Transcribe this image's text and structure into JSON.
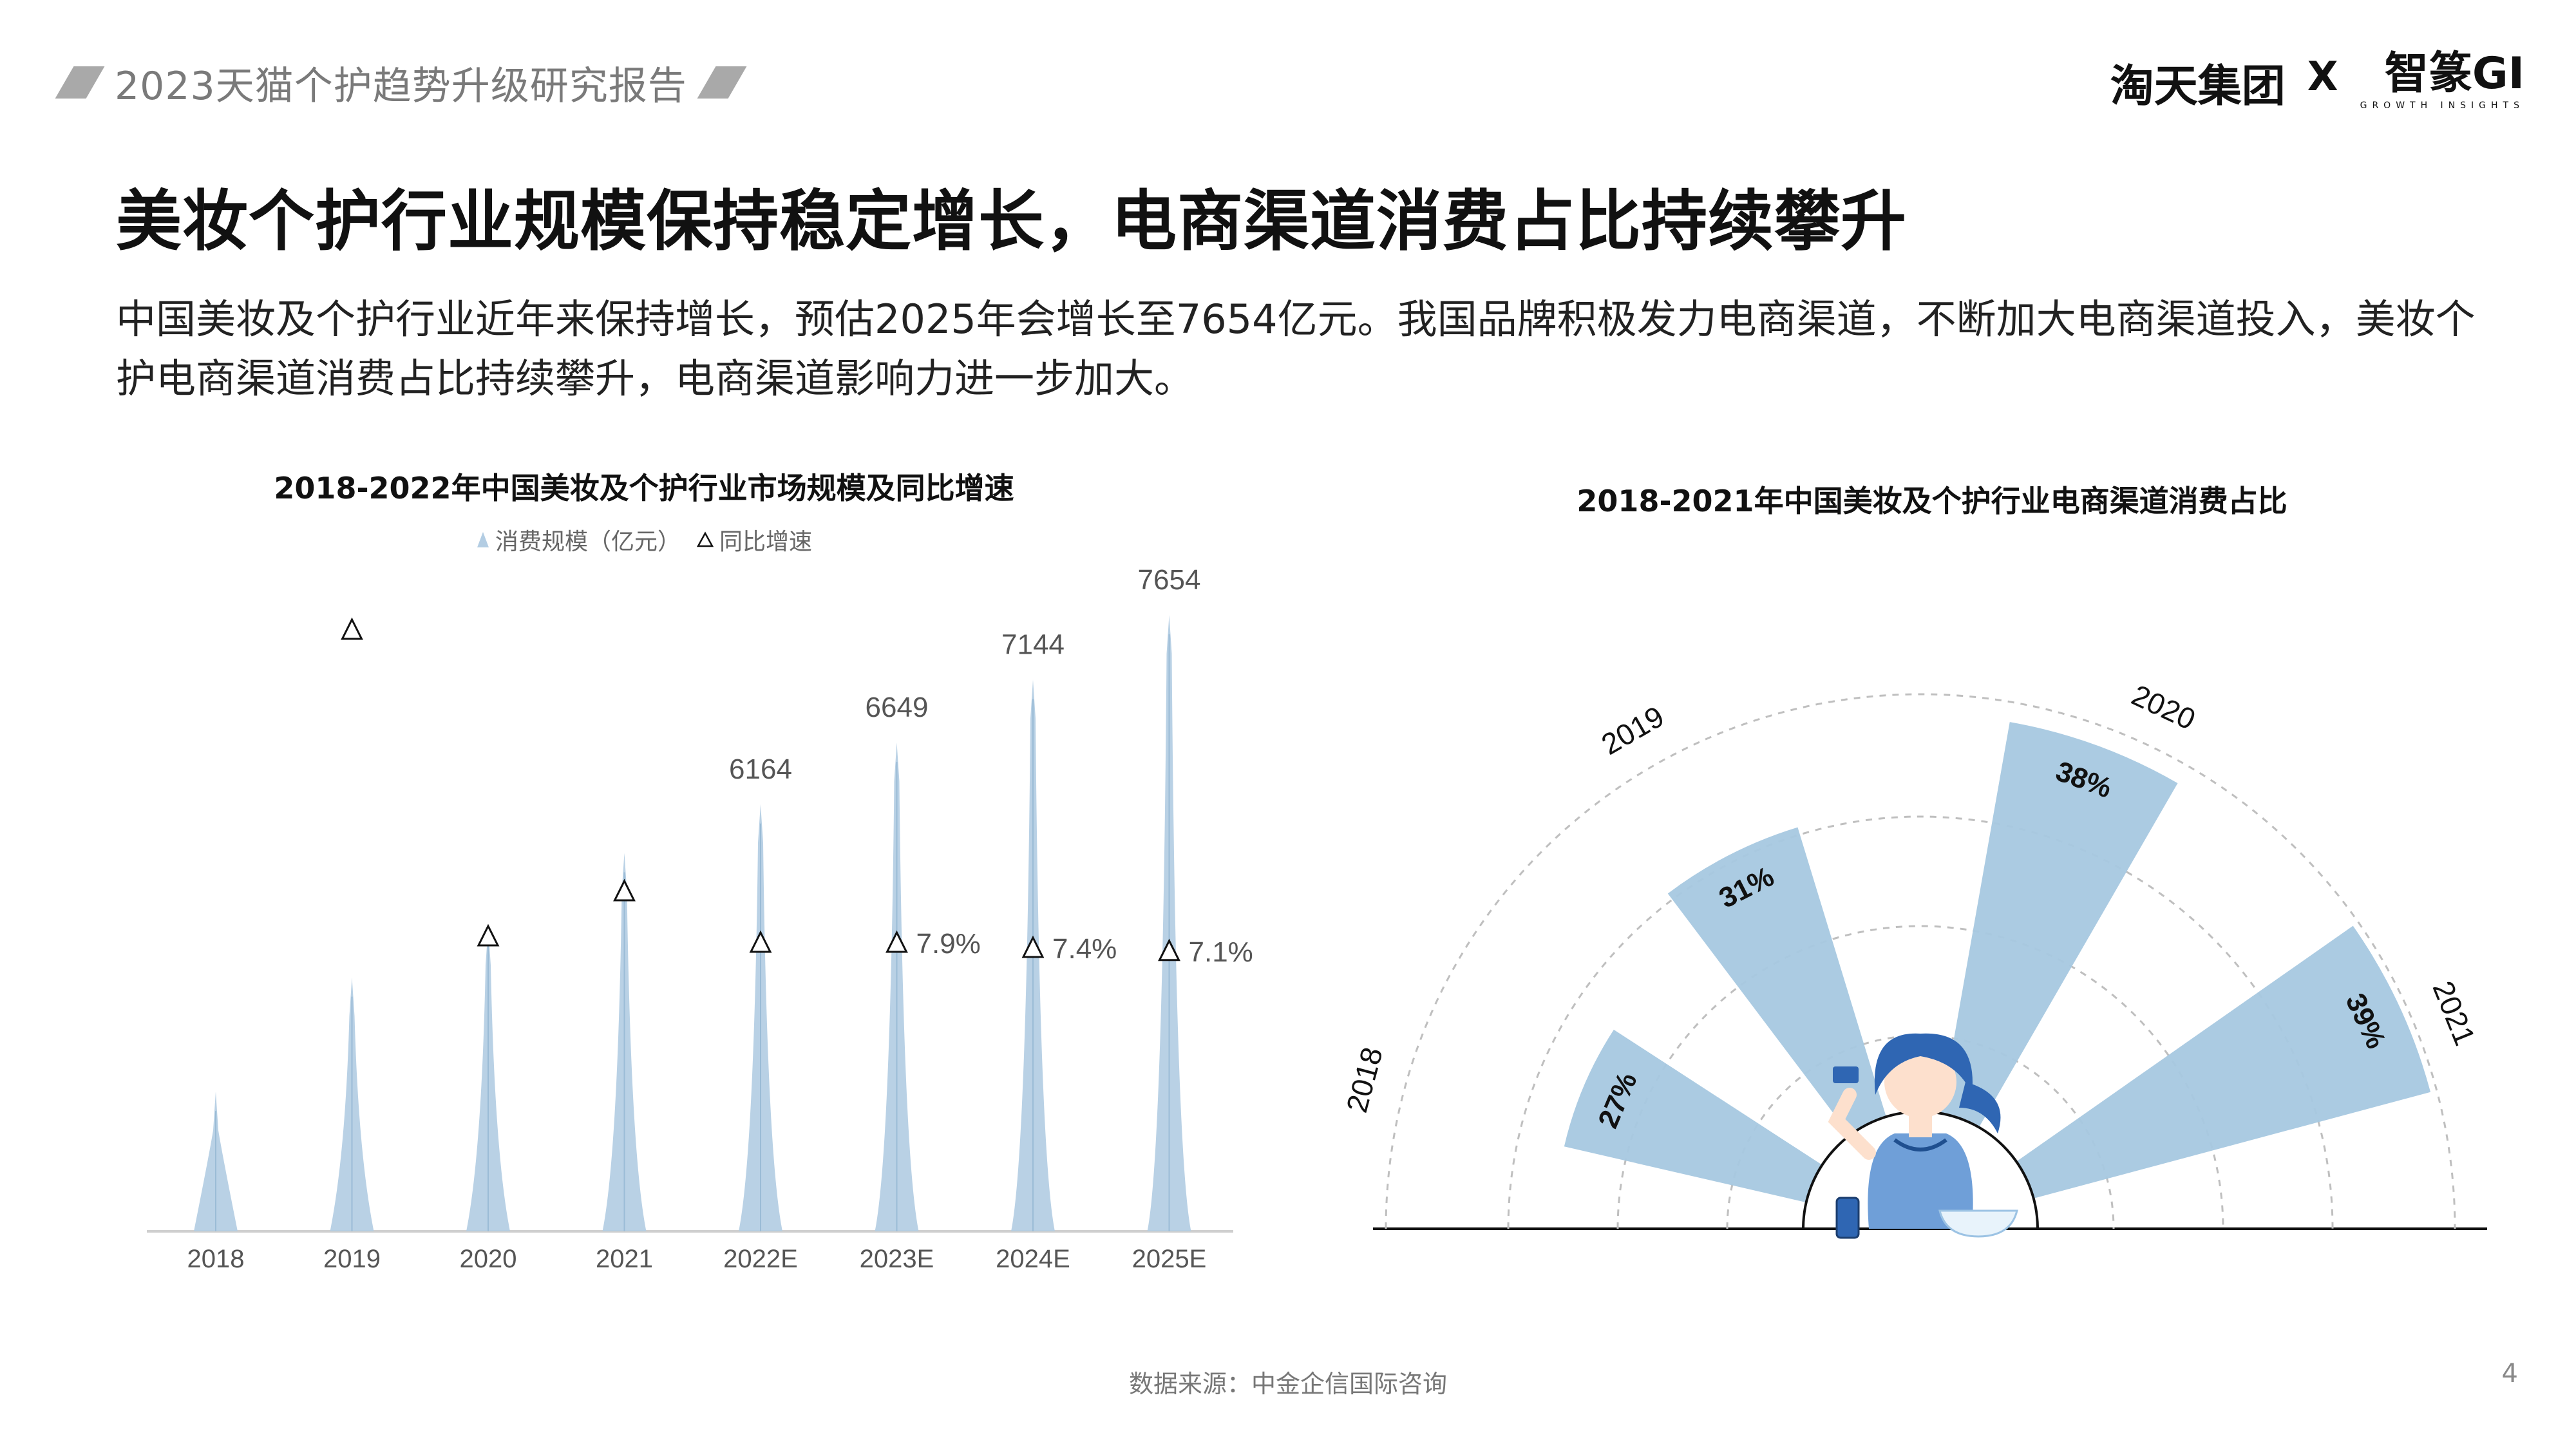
{
  "header": {
    "report_title": "2023天猫个护趋势升级研究报告",
    "brand_left": "淘天集团",
    "brand_x": "X",
    "brand_right": "智篆GI",
    "brand_right_sub": "GROWTH INSIGHTS"
  },
  "main": {
    "title": "美妆个护行业规模保持稳定增长，电商渠道消费占比持续攀升",
    "description": "中国美妆及个护行业近年来保持增长，预估2025年会增长至7654亿元。我国品牌积极发力电商渠道，不断加大电商渠道投入，美妆个护电商渠道消费占比持续攀升，电商渠道影响力进一步加大。"
  },
  "chart_data": [
    {
      "type": "bar",
      "title": "2018-2022年中国美妆及个护行业市场规模及同比增速",
      "categories": [
        "2018",
        "2019",
        "2020",
        "2021",
        "2022E",
        "2023E",
        "2024E",
        "2025E"
      ],
      "series": [
        {
          "name": "消费规模（亿元）",
          "type": "bar",
          "values": [
            3900,
            4800,
            5200,
            5780,
            6164,
            6649,
            7144,
            7654
          ],
          "color": "#b3cde3"
        },
        {
          "name": "同比增速",
          "type": "scatter",
          "values": [
            null,
            null,
            null,
            null,
            null,
            7.9,
            7.4,
            7.1
          ],
          "marker": "triangle"
        }
      ],
      "data_labels": {
        "4": "6164",
        "5": "6649",
        "6": "7144",
        "7": "7654"
      },
      "growth_labels": {
        "5": "7.9%",
        "6": "7.4%",
        "7": "7.1%"
      },
      "legend": "top-center",
      "grid": false
    },
    {
      "type": "pie",
      "title": "2018-2021年中国美妆及个护行业电商渠道消费占比",
      "categories": [
        "2018",
        "2019",
        "2020",
        "2021"
      ],
      "values": [
        27,
        31,
        38,
        39
      ],
      "value_labels": [
        "27%",
        "31%",
        "38%",
        "39%"
      ],
      "color": "#a6c8e0"
    }
  ],
  "footer": {
    "source": "数据来源：中金企信国际咨询",
    "page": "4"
  }
}
